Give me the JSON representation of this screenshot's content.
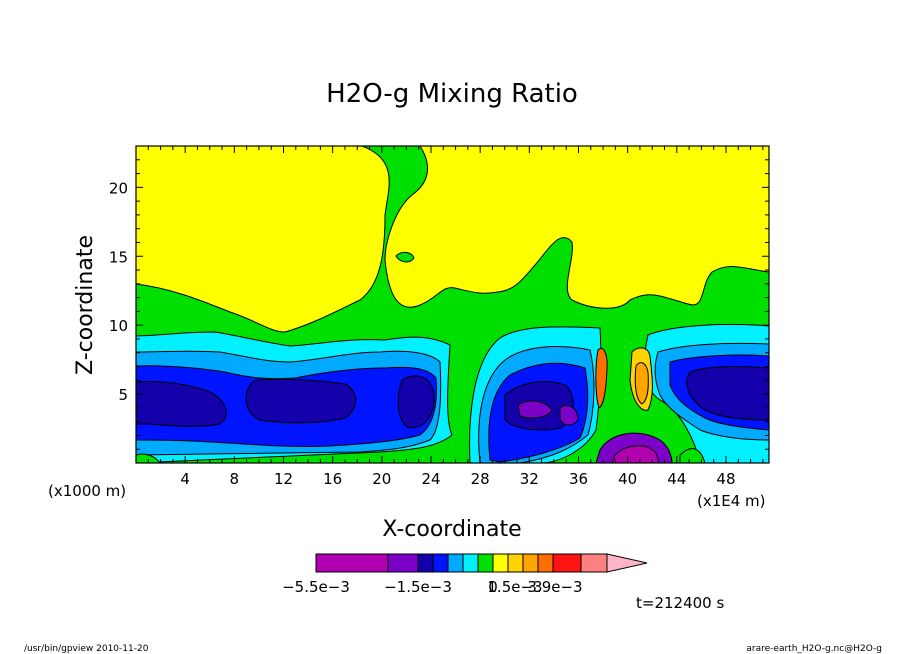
{
  "chart_data": {
    "type": "heatmap",
    "title": "H2O-g Mixing Ratio",
    "xlabel": "X-coordinate",
    "ylabel": "Z-coordinate",
    "x_unit_left": "(x1000 m)",
    "x_unit_right": "(x1E4 m)",
    "x_ticks": [
      "4",
      "8",
      "12",
      "16",
      "20",
      "24",
      "28",
      "32",
      "36",
      "40",
      "44",
      "48"
    ],
    "y_ticks": [
      "5",
      "10",
      "15",
      "20"
    ],
    "xlim": [
      0,
      51.5
    ],
    "ylim": [
      0,
      23
    ],
    "colorbar": {
      "colors": [
        "#b000b0",
        "#7d00c8",
        "#1400aa",
        "#0014ff",
        "#00aaff",
        "#00f0ff",
        "#00e000",
        "#ffff00",
        "#ffd200",
        "#ffa500",
        "#ff6e00",
        "#ff1414",
        "#ff8080",
        "#ffb4c8"
      ],
      "labels": [
        "−5.5e−3",
        "−1.5e−3",
        "0",
        "1.5e−3",
        "3.9e−3"
      ]
    },
    "time_label": "t=212400 s"
  },
  "footer": {
    "left": "/usr/bin/gpview  2010-11-20",
    "right": "arare-earth_H2O-g.nc@H2O-g"
  }
}
